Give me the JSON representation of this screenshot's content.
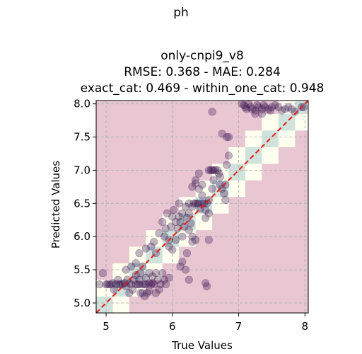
{
  "figure_title": "ph",
  "chart_data": {
    "type": "scatter",
    "title_lines": [
      "only-cnpi9_v8",
      "RMSE: 0.368 - MAE: 0.284",
      "exact_cat: 0.469 - within_one_cat: 0.948"
    ],
    "xlabel": "True Values",
    "ylabel": "Predicted Values",
    "xlim": [
      4.85,
      8.05
    ],
    "ylim": [
      4.85,
      8.05
    ],
    "x_ticks": [
      5,
      6,
      7,
      8
    ],
    "x_tick_labels": [
      "5",
      "6",
      "7",
      "8"
    ],
    "y_ticks": [
      5.0,
      5.5,
      6.0,
      6.5,
      7.0,
      7.5,
      8.0
    ],
    "y_tick_labels": [
      "5.0",
      "5.5",
      "6.0",
      "6.5",
      "7.0",
      "7.5",
      "8.0"
    ],
    "grid": true,
    "category_bin_edges": [
      4.85,
      5.1,
      5.35,
      5.6,
      5.85,
      6.1,
      6.35,
      6.6,
      6.85,
      7.1,
      7.35,
      7.6,
      7.85,
      8.05
    ],
    "category_colors": {
      "exact": "#cfe2dc",
      "within_one": "#fffff0",
      "outside": "#e8c6d2"
    },
    "reference_line": {
      "from": [
        4.85,
        4.85
      ],
      "to": [
        8.05,
        8.05
      ],
      "color": "#e8190e",
      "style": "dashed"
    },
    "point_color": "#3b1550",
    "points": [
      [
        4.9,
        5.28
      ],
      [
        4.95,
        5.45
      ],
      [
        5.0,
        5.28
      ],
      [
        5.02,
        5.28
      ],
      [
        5.05,
        5.28
      ],
      [
        5.08,
        5.28
      ],
      [
        5.1,
        5.3
      ],
      [
        5.12,
        5.2
      ],
      [
        5.15,
        5.28
      ],
      [
        5.18,
        5.35
      ],
      [
        5.2,
        5.28
      ],
      [
        5.22,
        5.28
      ],
      [
        5.25,
        5.28
      ],
      [
        5.28,
        5.3
      ],
      [
        5.3,
        5.25
      ],
      [
        5.32,
        5.35
      ],
      [
        5.35,
        5.3
      ],
      [
        5.35,
        5.15
      ],
      [
        5.38,
        5.28
      ],
      [
        5.4,
        5.2
      ],
      [
        5.42,
        5.35
      ],
      [
        5.45,
        5.28
      ],
      [
        5.45,
        5.42
      ],
      [
        5.48,
        5.28
      ],
      [
        5.5,
        5.28
      ],
      [
        5.5,
        5.35
      ],
      [
        5.52,
        5.45
      ],
      [
        5.55,
        5.28
      ],
      [
        5.55,
        5.15
      ],
      [
        5.58,
        5.28
      ],
      [
        5.6,
        5.38
      ],
      [
        5.6,
        5.28
      ],
      [
        5.62,
        5.15
      ],
      [
        5.65,
        5.3
      ],
      [
        5.65,
        5.45
      ],
      [
        5.68,
        5.28
      ],
      [
        5.7,
        5.4
      ],
      [
        5.72,
        5.28
      ],
      [
        5.75,
        5.15
      ],
      [
        5.75,
        5.45
      ],
      [
        5.78,
        5.35
      ],
      [
        5.8,
        5.2
      ],
      [
        5.82,
        5.28
      ],
      [
        5.85,
        5.45
      ],
      [
        5.88,
        5.35
      ],
      [
        5.9,
        5.28
      ],
      [
        5.95,
        5.38
      ],
      [
        5.3,
        5.5
      ],
      [
        5.38,
        5.55
      ],
      [
        5.45,
        5.6
      ],
      [
        5.5,
        5.75
      ],
      [
        5.6,
        5.82
      ],
      [
        5.55,
        5.55
      ],
      [
        5.52,
        5.15
      ],
      [
        5.58,
        5.1
      ],
      [
        5.65,
        5.18
      ],
      [
        5.7,
        5.3
      ],
      [
        6.2,
        5.5
      ],
      [
        6.25,
        5.35
      ],
      [
        5.68,
        5.85
      ],
      [
        5.72,
        5.92
      ],
      [
        5.75,
        5.75
      ],
      [
        5.8,
        6.05
      ],
      [
        5.85,
        6.22
      ],
      [
        5.88,
        6.0
      ],
      [
        5.9,
        6.12
      ],
      [
        5.92,
        6.35
      ],
      [
        5.95,
        5.95
      ],
      [
        5.98,
        6.15
      ],
      [
        6.0,
        6.3
      ],
      [
        6.02,
        6.4
      ],
      [
        6.05,
        6.22
      ],
      [
        6.08,
        6.12
      ],
      [
        6.1,
        6.3
      ],
      [
        6.1,
        6.5
      ],
      [
        6.12,
        6.22
      ],
      [
        6.15,
        6.0
      ],
      [
        6.15,
        6.35
      ],
      [
        6.18,
        6.15
      ],
      [
        6.2,
        6.45
      ],
      [
        6.22,
        6.28
      ],
      [
        6.25,
        6.5
      ],
      [
        6.25,
        6.35
      ],
      [
        6.28,
        6.2
      ],
      [
        6.3,
        6.45
      ],
      [
        6.32,
        6.5
      ],
      [
        6.35,
        6.5
      ],
      [
        6.38,
        6.5
      ],
      [
        6.4,
        6.5
      ],
      [
        6.42,
        6.42
      ],
      [
        6.45,
        6.5
      ],
      [
        6.48,
        6.5
      ],
      [
        6.5,
        6.4
      ],
      [
        6.5,
        6.28
      ],
      [
        6.52,
        6.5
      ],
      [
        6.55,
        6.35
      ],
      [
        6.55,
        6.55
      ],
      [
        6.3,
        6.75
      ],
      [
        6.35,
        6.8
      ],
      [
        6.4,
        6.72
      ],
      [
        6.45,
        6.78
      ],
      [
        6.6,
        6.72
      ],
      [
        6.62,
        6.85
      ],
      [
        6.25,
        6.1
      ],
      [
        6.3,
        5.92
      ],
      [
        6.35,
        5.95
      ],
      [
        6.22,
        5.75
      ],
      [
        6.3,
        6.0
      ],
      [
        6.12,
        5.55
      ],
      [
        6.15,
        5.62
      ],
      [
        6.55,
        5.95
      ],
      [
        6.5,
        5.3
      ],
      [
        6.52,
        5.25
      ],
      [
        6.0,
        5.8
      ],
      [
        6.05,
        5.95
      ],
      [
        5.95,
        5.85
      ],
      [
        6.55,
        7.0
      ],
      [
        6.58,
        7.0
      ],
      [
        6.6,
        7.0
      ],
      [
        6.62,
        7.0
      ],
      [
        6.65,
        7.0
      ],
      [
        6.68,
        7.0
      ],
      [
        6.7,
        6.95
      ],
      [
        6.72,
        6.78
      ],
      [
        6.75,
        6.72
      ],
      [
        6.78,
        6.65
      ],
      [
        6.8,
        6.55
      ],
      [
        6.8,
        6.78
      ],
      [
        6.82,
        7.08
      ],
      [
        6.85,
        7.22
      ],
      [
        6.75,
        7.55
      ],
      [
        6.82,
        7.5
      ],
      [
        6.85,
        7.5
      ],
      [
        6.6,
        7.88
      ],
      [
        6.72,
        6.9
      ],
      [
        6.4,
        6.95
      ],
      [
        6.35,
        6.85
      ],
      [
        6.45,
        6.62
      ],
      [
        7.05,
        8.0
      ],
      [
        7.08,
        7.98
      ],
      [
        7.1,
        7.95
      ],
      [
        7.12,
        7.92
      ],
      [
        7.15,
        8.0
      ],
      [
        7.18,
        7.95
      ],
      [
        7.2,
        7.92
      ],
      [
        7.25,
        7.9
      ],
      [
        7.28,
        7.98
      ],
      [
        7.3,
        7.95
      ],
      [
        7.35,
        7.92
      ],
      [
        7.38,
        7.98
      ],
      [
        7.4,
        7.95
      ],
      [
        7.45,
        7.92
      ],
      [
        7.48,
        7.9
      ],
      [
        7.5,
        7.95
      ],
      [
        7.55,
        7.98
      ],
      [
        7.6,
        7.95
      ],
      [
        7.65,
        7.9
      ],
      [
        7.7,
        7.92
      ],
      [
        7.75,
        7.95
      ],
      [
        7.8,
        7.92
      ],
      [
        7.85,
        7.88
      ],
      [
        7.95,
        7.95
      ],
      [
        7.98,
        7.95
      ],
      [
        7.25,
        7.85
      ],
      [
        7.35,
        7.85
      ]
    ]
  }
}
